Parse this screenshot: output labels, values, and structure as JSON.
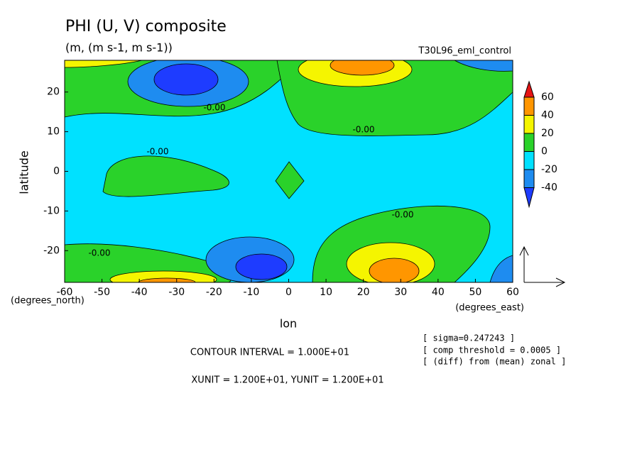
{
  "chart_data": {
    "type": "contour",
    "title": "PHI (U, V) composite",
    "subtitle": "(m, (m s-1, m s-1))",
    "experiment": "T30L96_eml_control",
    "x_label": "lon",
    "y_label": "latitude",
    "x_unit_label": "(degrees_east)",
    "y_unit_label": "(degrees_north)",
    "xlim": [
      -60,
      60
    ],
    "ylim": [
      -28,
      28
    ],
    "xticks": [
      -60,
      -50,
      -40,
      -30,
      -20,
      -10,
      0,
      10,
      20,
      30,
      40,
      50,
      60
    ],
    "yticks": [
      -20,
      -10,
      0,
      10,
      20
    ],
    "levels": [
      -40,
      -20,
      0,
      20,
      40,
      60
    ],
    "colors": [
      "#1e3cff",
      "#1e8cf0",
      "#00e1ff",
      "#2ad22a",
      "#f5f500",
      "#ff9600",
      "#e61414"
    ],
    "contour_labels": [
      "-0.00",
      "-0.00",
      "-0.00",
      "-0.00",
      "-0.00"
    ],
    "notes": [
      "CONTOUR INTERVAL = 1.000E+01",
      "XUNIT = 1.200E+01, YUNIT = 1.200E+01"
    ],
    "info": [
      "[ sigma=0.247243 ]",
      "[ comp threshold = 0.0005 ]",
      "[ (diff) from (mean) zonal ]"
    ]
  }
}
